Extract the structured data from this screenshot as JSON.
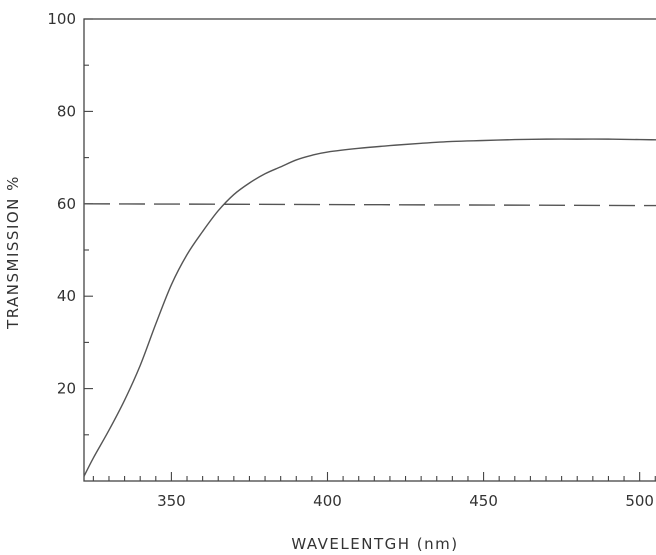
{
  "chart_data": {
    "type": "line",
    "title": "",
    "xlabel": "WAVELENTGH (nm)",
    "ylabel": "TRANSMISSION %",
    "xlim": [
      322,
      511
    ],
    "ylim": [
      0,
      100
    ],
    "x_ticks_major": [
      350,
      400,
      450,
      500
    ],
    "x_ticks_minor": [
      325,
      330,
      335,
      340,
      345,
      355,
      360,
      365,
      370,
      375,
      380,
      385,
      390,
      395,
      405,
      410,
      415,
      420,
      425,
      430,
      435,
      440,
      445,
      455,
      460,
      465,
      470,
      475,
      480,
      485,
      490,
      495,
      505,
      510
    ],
    "x_tick_labels": [
      "350",
      "400",
      "450",
      "500"
    ],
    "y_ticks_major": [
      20,
      40,
      60,
      80,
      100
    ],
    "y_ticks_minor": [
      10,
      30,
      50,
      70,
      90
    ],
    "y_tick_labels": [
      "20",
      "40",
      "60",
      "80",
      "100"
    ],
    "grid": false,
    "legend": "none",
    "series": [
      {
        "style": "solid",
        "color": "#555555",
        "x": [
          322,
          325,
          330,
          335,
          340,
          345,
          350,
          355,
          360,
          365,
          370,
          375,
          380,
          385,
          390,
          395,
          400,
          410,
          420,
          430,
          440,
          450,
          460,
          470,
          480,
          490,
          500,
          510
        ],
        "y": [
          1.0,
          5.0,
          11.0,
          17.5,
          25.0,
          34.0,
          42.5,
          49.0,
          54.0,
          58.5,
          62.0,
          64.5,
          66.5,
          68.0,
          69.5,
          70.5,
          71.2,
          72.0,
          72.6,
          73.1,
          73.5,
          73.7,
          73.9,
          74.0,
          74.0,
          74.0,
          73.9,
          73.8
        ]
      },
      {
        "style": "dashed",
        "color": "#555555",
        "x": [
          322,
          511
        ],
        "y": [
          60.0,
          59.6
        ]
      }
    ]
  }
}
